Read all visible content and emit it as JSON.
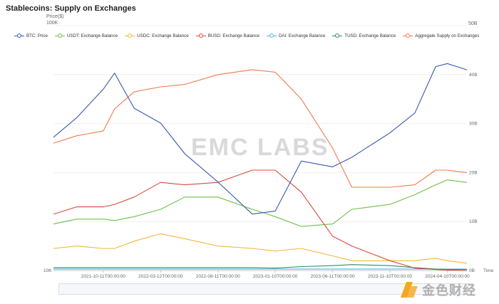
{
  "chart_data": {
    "type": "line",
    "title": "Stablecoins: Supply on Exchanges",
    "y_left_label": "Price($)",
    "x_label": "Time",
    "y_left_ticks": [
      "10K",
      "100K"
    ],
    "y_right_ticks": [
      "0B",
      "10B",
      "20B",
      "30B",
      "40B",
      "50B"
    ],
    "x_ticks": [
      "2021-10-11T00:00:00",
      "2022-03-12T00:00:00",
      "2022-08-11T00:00:00",
      "2023-01-10T00:00:00",
      "2023-06-11T00:00:00",
      "2023-11-10T00:00:00",
      "2024-04-10T00:00:00"
    ],
    "y_left_scale": "log",
    "y_left_range": [
      10000,
      100000
    ],
    "y_right_range": [
      0,
      50
    ],
    "grid": true,
    "legend_position": "top",
    "x_dates": [
      "2021-06-01",
      "2021-08-01",
      "2021-10-11",
      "2021-11-10",
      "2022-01-01",
      "2022-03-12",
      "2022-05-15",
      "2022-08-11",
      "2022-11-10",
      "2023-01-10",
      "2023-03-20",
      "2023-06-11",
      "2023-08-01",
      "2023-11-10",
      "2024-01-15",
      "2024-03-10",
      "2024-04-10",
      "2024-06-01"
    ],
    "series": [
      {
        "name": "BTC: Price",
        "color": "#3a59b0",
        "axis": "left",
        "values": [
          35000,
          42000,
          55000,
          64000,
          46000,
          40000,
          30000,
          23000,
          17000,
          17500,
          28000,
          26500,
          29000,
          36500,
          44000,
          68000,
          70000,
          66000
        ]
      },
      {
        "name": "USDT: Exchange Balance",
        "color": "#6fbf4a",
        "axis": "right",
        "values": [
          9.5,
          10.5,
          10.5,
          10.2,
          11.0,
          12.5,
          15.0,
          15.0,
          12.5,
          11.0,
          9.0,
          9.5,
          12.5,
          13.5,
          15.5,
          17.5,
          18.5,
          18.0
        ]
      },
      {
        "name": "USDC: Exchange Balance",
        "color": "#f5b63a",
        "axis": "right",
        "values": [
          4.5,
          5.0,
          4.5,
          4.5,
          6.0,
          7.5,
          6.5,
          5.0,
          4.5,
          4.0,
          4.5,
          3.0,
          2.0,
          2.0,
          2.0,
          2.5,
          2.0,
          1.5
        ]
      },
      {
        "name": "BUSD: Exchange Balance",
        "color": "#d84a3a",
        "axis": "right",
        "values": [
          11.5,
          13.0,
          13.0,
          13.5,
          15.0,
          18.0,
          17.5,
          18.0,
          20.5,
          20.5,
          16.0,
          7.0,
          5.0,
          2.0,
          0.5,
          0.2,
          0.1,
          0.0
        ]
      },
      {
        "name": "DAI: Exchange Balance",
        "color": "#4fb3d9",
        "axis": "right",
        "values": [
          0.3,
          0.3,
          0.3,
          0.3,
          0.3,
          0.3,
          0.3,
          0.3,
          0.3,
          0.3,
          0.3,
          0.3,
          0.3,
          0.3,
          0.3,
          0.3,
          0.3,
          0.3
        ]
      },
      {
        "name": "TUSD: Exchange Balance",
        "color": "#2a8f6a",
        "axis": "right",
        "values": [
          0.6,
          0.6,
          0.6,
          0.6,
          0.6,
          0.6,
          0.6,
          0.6,
          0.6,
          0.5,
          0.8,
          1.0,
          1.2,
          1.0,
          0.6,
          0.3,
          0.2,
          0.2
        ]
      },
      {
        "name": "Aggregate Supply on Exchanges",
        "color": "#f07a4a",
        "axis": "right",
        "values": [
          26.0,
          27.5,
          28.5,
          33.0,
          36.5,
          37.5,
          38.0,
          40.0,
          41.0,
          40.5,
          35.0,
          25.0,
          17.0,
          17.0,
          17.5,
          20.5,
          20.5,
          20.0
        ]
      }
    ]
  },
  "watermark": "EMC LABS",
  "logo_text": "金色财经"
}
